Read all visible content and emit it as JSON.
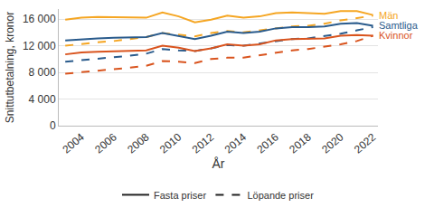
{
  "chart_data": {
    "type": "line",
    "x_label": "År",
    "y_label": "Snittutbetalning, kronor",
    "x": [
      2003,
      2004,
      2005,
      2006,
      2007,
      2008,
      2009,
      2010,
      2011,
      2012,
      2013,
      2014,
      2015,
      2016,
      2017,
      2018,
      2019,
      2020,
      2021,
      2022
    ],
    "xlim": [
      2002.6,
      2022.3
    ],
    "xticks": [
      2004,
      2006,
      2008,
      2010,
      2012,
      2014,
      2016,
      2018,
      2020,
      2022
    ],
    "ylim": [
      0,
      17500
    ],
    "yticks": [
      0,
      {
        "value": 4000,
        "label": "4 000"
      },
      {
        "value": 8000,
        "label": "8 000"
      },
      {
        "value": 12000,
        "label": "12 000"
      },
      {
        "value": 16000,
        "label": "16 000"
      }
    ],
    "grid": "y",
    "legend": "bottom",
    "legend_entries": [
      {
        "name": "Fasta priser",
        "line_style": "solid"
      },
      {
        "name": "Löpande priser",
        "line_style": "dash"
      }
    ],
    "series": [
      {
        "name": "Män",
        "color": "#f5a623",
        "lines": [
          {
            "values": [
              15900,
              16200,
              16300,
              16300,
              16300,
              16200,
              17000,
              16400,
              15500,
              15900,
              16500,
              16200,
              16400,
              16900,
              17000,
              16900,
              16800,
              17200,
              17200,
              16600
            ]
          },
          {
            "values": [
              12000,
              12300,
              12500,
              12700,
              13000,
              13300,
              13900,
              13600,
              13400,
              13900,
              14200,
              14000,
              14300,
              14700,
              14900,
              15000,
              15300,
              15800,
              16200,
              16500
            ]
          }
        ]
      },
      {
        "name": "Samtliga",
        "color": "#2a5b8c",
        "lines": [
          {
            "values": [
              12800,
              13000,
              13100,
              13200,
              13300,
              13300,
              13900,
              13400,
              13000,
              13500,
              14100,
              13900,
              14100,
              14600,
              14800,
              14800,
              14900,
              15300,
              15400,
              15000
            ]
          },
          {
            "values": [
              9600,
              9800,
              10000,
              10200,
              10500,
              10800,
              11500,
              11300,
              11200,
              11600,
              12100,
              12000,
              12300,
              12700,
              13000,
              13100,
              13400,
              13800,
              14300,
              14800
            ]
          }
        ]
      },
      {
        "name": "Kvinnor",
        "color": "#d9541e",
        "lines": [
          {
            "values": [
              10700,
              11000,
              11100,
              11200,
              11300,
              11300,
              12000,
              11700,
              11200,
              11600,
              12200,
              12000,
              12200,
              12800,
              13000,
              13000,
              13100,
              13500,
              13600,
              13500
            ]
          },
          {
            "values": [
              7800,
              8000,
              8200,
              8400,
              8700,
              9000,
              9700,
              9600,
              9400,
              10000,
              10200,
              10200,
              10600,
              11000,
              11300,
              11500,
              11800,
              12200,
              12700,
              13500
            ]
          }
        ]
      }
    ]
  }
}
